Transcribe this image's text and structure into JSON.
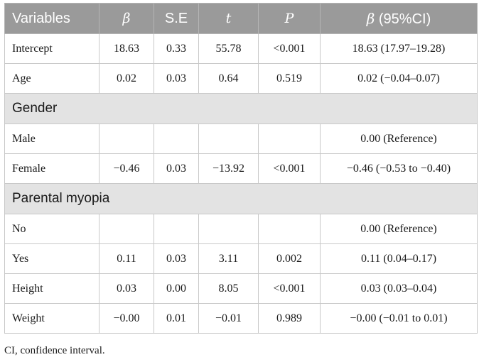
{
  "table": {
    "headers": {
      "variables": "Variables",
      "beta": "β",
      "se": "S.E",
      "t": "t",
      "p": "P",
      "ci_symbol": "β",
      "ci_text": " (95%CI)"
    },
    "rows": [
      {
        "label": "Intercept",
        "beta": "18.63",
        "se": "0.33",
        "t": "55.78",
        "p": "<0.001",
        "ci": "18.63 (17.97–19.28)"
      },
      {
        "label": "Age",
        "beta": "0.02",
        "se": "0.03",
        "t": "0.64",
        "p": "0.519",
        "ci": "0.02 (−0.04–0.07)"
      },
      {
        "section": "Gender"
      },
      {
        "label": "Male",
        "beta": "",
        "se": "",
        "t": "",
        "p": "",
        "ci": "0.00 (Reference)"
      },
      {
        "label": "Female",
        "beta": "−0.46",
        "se": "0.03",
        "t": "−13.92",
        "p": "<0.001",
        "ci": "−0.46 (−0.53 to −0.40)"
      },
      {
        "section": "Parental myopia"
      },
      {
        "label": "No",
        "beta": "",
        "se": "",
        "t": "",
        "p": "",
        "ci": "0.00 (Reference)"
      },
      {
        "label": "Yes",
        "beta": "0.11",
        "se": "0.03",
        "t": "3.11",
        "p": "0.002",
        "ci": "0.11 (0.04–0.17)"
      },
      {
        "label": "Height",
        "beta": "0.03",
        "se": "0.00",
        "t": "8.05",
        "p": "<0.001",
        "ci": "0.03 (0.03–0.04)"
      },
      {
        "label": "Weight",
        "beta": "−0.00",
        "se": "0.01",
        "t": "−0.01",
        "p": "0.989",
        "ci": "−0.00 (−0.01 to 0.01)"
      }
    ]
  },
  "footnote": "CI, confidence interval."
}
